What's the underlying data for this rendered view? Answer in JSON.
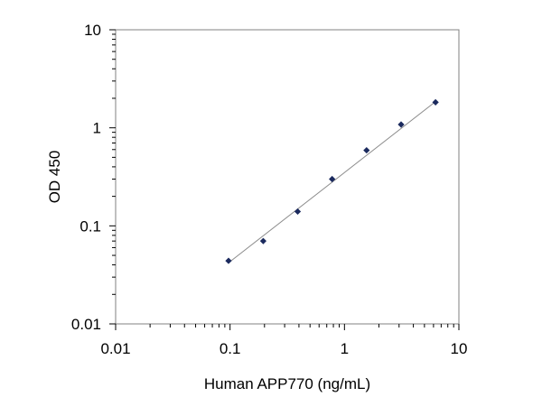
{
  "chart_data": {
    "type": "scatter",
    "title": "",
    "xlabel": "Human APP770 (ng/mL)",
    "ylabel": "OD 450",
    "x_scale": "log",
    "y_scale": "log",
    "xlim": [
      0.01,
      10
    ],
    "ylim": [
      0.01,
      10
    ],
    "x_ticks": [
      {
        "value": 0.01,
        "label": "0.01"
      },
      {
        "value": 0.1,
        "label": "0.1"
      },
      {
        "value": 1,
        "label": "1"
      },
      {
        "value": 10,
        "label": "10"
      }
    ],
    "y_ticks": [
      {
        "value": 0.01,
        "label": "0.01"
      },
      {
        "value": 0.1,
        "label": "0.1"
      },
      {
        "value": 1,
        "label": "1"
      },
      {
        "value": 10,
        "label": "10"
      }
    ],
    "grid": false,
    "legend": "none",
    "series": [
      {
        "x": [
          0.097,
          0.195,
          0.39,
          0.78,
          1.56,
          3.125,
          6.25
        ],
        "y": [
          0.044,
          0.07,
          0.14,
          0.3,
          0.59,
          1.08,
          1.82
        ]
      }
    ],
    "trendline": {
      "x": [
        0.097,
        6.25
      ],
      "y": [
        0.042,
        1.85
      ]
    },
    "colors": {
      "marker": "#1b2a5e",
      "trendline": "#8c8c8c",
      "plot_border": "#808080",
      "axis": "#000000"
    }
  }
}
